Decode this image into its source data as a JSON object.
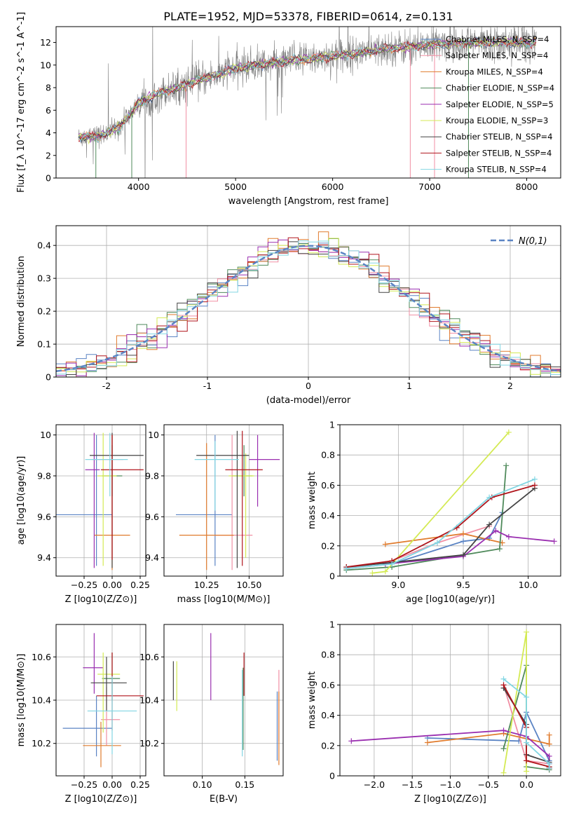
{
  "figure_title": "PLATE=1952, MJD=53378, FIBERID=0614, z=0.131",
  "chart_data": [
    {
      "id": "spectrum",
      "type": "line",
      "title": "PLATE=1952, MJD=53378, FIBERID=0614, z=0.131",
      "xlabel": "wavelength [Angstrom, rest frame]",
      "ylabel": "Flux [f_λ 10^-17 erg cm^-2 s^-1 A^-1]",
      "xlim": [
        3150,
        8350
      ],
      "ylim": [
        0,
        13.4
      ],
      "xticks": [
        4000,
        5000,
        6000,
        7000,
        8000
      ],
      "yticks": [
        0,
        2,
        4,
        6,
        8,
        10,
        12
      ],
      "grid": false,
      "legend": "upper right",
      "series": [
        {
          "name": "Chabrier MILES, N_SSP=4",
          "color": "#5b84c4"
        },
        {
          "name": "Salpeter MILES, N_SSP=4",
          "color": "#f18fa4"
        },
        {
          "name": "Kroupa MILES, N_SSP=4",
          "color": "#e07b2d"
        },
        {
          "name": "Chabrier ELODIE, N_SSP=4",
          "color": "#4f8a5b"
        },
        {
          "name": "Salpeter ELODIE, N_SSP=5",
          "color": "#9a2fb0"
        },
        {
          "name": "Kroupa ELODIE, N_SSP=3",
          "color": "#d4ea54"
        },
        {
          "name": "Chabrier STELIB, N_SSP=4",
          "color": "#444444"
        },
        {
          "name": "Salpeter STELIB, N_SSP=4",
          "color": "#b0151c"
        },
        {
          "name": "Kroupa STELIB, N_SSP=4",
          "color": "#82d6e3"
        }
      ],
      "observed_color": "#808080",
      "continuum_x": [
        3380,
        3600,
        3800,
        4000,
        4200,
        4400,
        4600,
        4800,
        5000,
        5200,
        5400,
        5600,
        5800,
        6000,
        6200,
        6400,
        6600,
        6800,
        7000,
        7200,
        7400,
        7600,
        7800,
        8000,
        8100
      ],
      "continuum_y": [
        3.6,
        3.7,
        4.5,
        6.6,
        7.5,
        8.0,
        8.6,
        9.1,
        9.7,
        10.0,
        10.2,
        10.4,
        10.6,
        10.8,
        11.0,
        11.2,
        11.5,
        11.6,
        11.8,
        11.9,
        11.95,
        12.0,
        12.05,
        12.0,
        12.0
      ]
    },
    {
      "id": "residual-hist",
      "type": "line",
      "xlabel": "(data-model)/error",
      "ylabel": "Normed distribution",
      "xlim": [
        -2.5,
        2.5
      ],
      "ylim": [
        0,
        0.46
      ],
      "xticks": [
        -2,
        -1,
        0,
        1,
        2
      ],
      "yticks": [
        0.0,
        0.1,
        0.2,
        0.3,
        0.4
      ],
      "grid": true,
      "legend": "upper right",
      "legend_label": "N(0,1)",
      "gauss_color": "#5b84c4",
      "bin_width": 0.1
    },
    {
      "id": "age-vs-z",
      "type": "scatter",
      "xlabel": "Z [log10(Z/Z⊙)]",
      "ylabel": "age [log10(age/yr)]",
      "xlim": [
        -0.5,
        0.3
      ],
      "ylim": [
        9.31,
        10.05
      ],
      "xticks": [
        -0.25,
        0.0,
        0.25
      ],
      "xticklabels": [
        "−0.25",
        "0.00",
        "0.25"
      ],
      "yticks": [
        9.4,
        9.6,
        9.8,
        10.0
      ],
      "grid": true,
      "points": [
        {
          "series": 0,
          "x": -0.14,
          "y": 9.61,
          "xerr": [
            0.46,
            0.14
          ],
          "yerr": [
            0.25,
            0.39
          ]
        },
        {
          "series": 1,
          "x": 0.0,
          "y": 9.88,
          "xerr": [
            0.18,
            0.1
          ],
          "yerr": [
            0.1,
            0.13
          ]
        },
        {
          "series": 2,
          "x": 0.0,
          "y": 9.51,
          "xerr": [
            0.16,
            0.16
          ],
          "yerr": [
            0.17,
            0.49
          ]
        },
        {
          "series": 3,
          "x": 0.0,
          "y": 9.8,
          "xerr": [
            0.09,
            0.09
          ],
          "yerr": [
            0.1,
            0.15
          ]
        },
        {
          "series": 4,
          "x": -0.16,
          "y": 9.83,
          "xerr": [
            0.08,
            0.05
          ],
          "yerr": [
            0.48,
            0.18
          ]
        },
        {
          "series": 5,
          "x": -0.08,
          "y": 9.8,
          "xerr": [
            0.05,
            0.12
          ],
          "yerr": [
            0.44,
            0.21
          ]
        },
        {
          "series": 6,
          "x": 0.0,
          "y": 9.9,
          "xerr": [
            0.2,
            0.28
          ],
          "yerr": [
            0.55,
            0.11
          ]
        },
        {
          "series": 7,
          "x": 0.0,
          "y": 9.83,
          "xerr": [
            0.1,
            0.28
          ],
          "yerr": [
            0.44,
            0.17
          ]
        },
        {
          "series": 8,
          "x": -0.02,
          "y": 9.88,
          "xerr": [
            0.22,
            0.16
          ],
          "yerr": [
            0.18,
            0.13
          ]
        }
      ]
    },
    {
      "id": "age-vs-mass",
      "type": "scatter",
      "xlabel": "mass [log10(M/M⊙)]",
      "ylabel": "",
      "xlim": [
        10.0,
        10.7
      ],
      "ylim": [
        9.31,
        10.05
      ],
      "xticks": [
        10.25,
        10.5
      ],
      "xticklabels": [
        "10.25",
        "10.50"
      ],
      "yticks": [
        9.4,
        9.6,
        9.8,
        10.0
      ],
      "grid": true,
      "points": [
        {
          "series": 0,
          "x": 10.3,
          "y": 9.61,
          "xerr": [
            0.23,
            0.1
          ],
          "yerr": [
            0.25,
            0.39
          ]
        },
        {
          "series": 1,
          "x": 10.4,
          "y": 9.51,
          "xerr": [
            0.1,
            0.12
          ],
          "yerr": [
            0.17,
            0.49
          ]
        },
        {
          "series": 2,
          "x": 10.25,
          "y": 9.51,
          "xerr": [
            0.16,
            0.16
          ],
          "yerr": [
            0.17,
            0.45
          ]
        },
        {
          "series": 3,
          "x": 10.47,
          "y": 9.8,
          "xerr": [
            0.07,
            0.05
          ],
          "yerr": [
            0.1,
            0.15
          ]
        },
        {
          "series": 4,
          "x": 10.55,
          "y": 9.88,
          "xerr": [
            0.05,
            0.13
          ],
          "yerr": [
            0.23,
            0.12
          ]
        },
        {
          "series": 5,
          "x": 10.48,
          "y": 9.8,
          "xerr": [
            0.1,
            0.05
          ],
          "yerr": [
            0.4,
            0.11
          ]
        },
        {
          "series": 6,
          "x": 10.43,
          "y": 9.9,
          "xerr": [
            0.24,
            0.07
          ],
          "yerr": [
            0.55,
            0.12
          ]
        },
        {
          "series": 7,
          "x": 10.46,
          "y": 9.83,
          "xerr": [
            0.1,
            0.12
          ],
          "yerr": [
            0.47,
            0.19
          ]
        },
        {
          "series": 8,
          "x": 10.3,
          "y": 9.88,
          "xerr": [
            0.12,
            0.14
          ],
          "yerr": [
            0.25,
            0.09
          ]
        }
      ]
    },
    {
      "id": "massweight-vs-age",
      "type": "line",
      "xlabel": "age [log10(age/yr)]",
      "ylabel": "mass weight",
      "xlim": [
        8.55,
        10.25
      ],
      "ylim": [
        0,
        1.0
      ],
      "xticks": [
        9.0,
        9.5,
        10.0
      ],
      "xticklabels": [
        "9.0",
        "9.5",
        "10.0"
      ],
      "yticks": [
        0.0,
        0.2,
        0.4,
        0.6,
        0.8,
        1.0
      ],
      "grid": true,
      "series": [
        {
          "series": 0,
          "x": [
            8.6,
            8.95,
            9.5,
            9.7,
            9.8
          ],
          "y": [
            0.05,
            0.08,
            0.23,
            0.25,
            0.42
          ]
        },
        {
          "series": 1,
          "x": [
            8.6,
            8.95,
            9.3,
            9.7
          ],
          "y": [
            0.05,
            0.1,
            0.22,
            0.33
          ]
        },
        {
          "series": 2,
          "x": [
            8.9,
            9.5,
            9.8
          ],
          "y": [
            0.21,
            0.28,
            0.22
          ]
        },
        {
          "series": 3,
          "x": [
            8.6,
            8.95,
            9.78,
            9.83
          ],
          "y": [
            0.04,
            0.06,
            0.18,
            0.73
          ]
        },
        {
          "series": 4,
          "x": [
            8.9,
            9.5,
            9.75,
            9.85,
            10.2
          ],
          "y": [
            0.08,
            0.13,
            0.3,
            0.26,
            0.23
          ]
        },
        {
          "series": 5,
          "x": [
            8.8,
            8.9,
            9.85
          ],
          "y": [
            0.02,
            0.03,
            0.95
          ]
        },
        {
          "series": 6,
          "x": [
            8.6,
            8.95,
            9.5,
            9.7,
            10.05
          ],
          "y": [
            0.06,
            0.09,
            0.14,
            0.34,
            0.58
          ]
        },
        {
          "series": 7,
          "x": [
            8.6,
            8.95,
            9.45,
            9.72,
            10.05
          ],
          "y": [
            0.06,
            0.1,
            0.32,
            0.52,
            0.6
          ]
        },
        {
          "series": 8,
          "x": [
            8.6,
            8.95,
            9.3,
            9.7,
            10.05
          ],
          "y": [
            0.05,
            0.08,
            0.22,
            0.52,
            0.64
          ]
        }
      ]
    },
    {
      "id": "mass-vs-z",
      "type": "scatter",
      "xlabel": "Z [log10(Z/Z⊙)]",
      "ylabel": "mass [log10(M/M⊙)]",
      "xlim": [
        -0.5,
        0.3
      ],
      "ylim": [
        10.05,
        10.75
      ],
      "xticks": [
        -0.25,
        0.0,
        0.25
      ],
      "xticklabels": [
        "−0.25",
        "0.00",
        "0.25"
      ],
      "yticks": [
        10.2,
        10.4,
        10.6
      ],
      "grid": true,
      "points": [
        {
          "series": 0,
          "x": -0.14,
          "y": 10.27,
          "xerr": [
            0.3,
            0.14
          ],
          "yerr": [
            0.13,
            0.15
          ]
        },
        {
          "series": 1,
          "x": -0.05,
          "y": 10.31,
          "xerr": [
            0.05,
            0.12
          ],
          "yerr": [
            0.12,
            0.15
          ]
        },
        {
          "series": 2,
          "x": -0.1,
          "y": 10.19,
          "xerr": [
            0.16,
            0.18
          ],
          "yerr": [
            0.1,
            0.11
          ]
        },
        {
          "series": 3,
          "x": 0.0,
          "y": 10.5,
          "xerr": [
            0.09,
            0.07
          ],
          "yerr": [
            0.1,
            0.12
          ]
        },
        {
          "series": 4,
          "x": -0.16,
          "y": 10.55,
          "xerr": [
            0.1,
            0.08
          ],
          "yerr": [
            0.12,
            0.16
          ]
        },
        {
          "series": 5,
          "x": -0.08,
          "y": 10.52,
          "xerr": [
            0.05,
            0.15
          ],
          "yerr": [
            0.27,
            0.1
          ]
        },
        {
          "series": 6,
          "x": -0.05,
          "y": 10.48,
          "xerr": [
            0.14,
            0.18
          ],
          "yerr": [
            0.13,
            0.12
          ]
        },
        {
          "series": 7,
          "x": 0.0,
          "y": 10.42,
          "xerr": [
            0.14,
            0.28
          ],
          "yerr": [
            0.16,
            0.2
          ]
        },
        {
          "series": 8,
          "x": 0.0,
          "y": 10.35,
          "xerr": [
            0.22,
            0.22
          ],
          "yerr": [
            0.2,
            0.16
          ]
        }
      ]
    },
    {
      "id": "mass-vs-ebv",
      "type": "scatter",
      "xlabel": "E(B-V)",
      "ylabel": "",
      "xlim": [
        0.055,
        0.195
      ],
      "ylim": [
        10.05,
        10.75
      ],
      "xticks": [
        0.1,
        0.15
      ],
      "xticklabels": [
        "0.10",
        "0.15"
      ],
      "yticks": [
        10.2,
        10.4,
        10.6
      ],
      "grid": true,
      "points": [
        {
          "series": 0,
          "x": 0.188,
          "y": 10.28,
          "yerr": [
            0.16,
            0.16
          ]
        },
        {
          "series": 1,
          "x": 0.19,
          "y": 10.33,
          "yerr": [
            0.12,
            0.21
          ]
        },
        {
          "series": 2,
          "x": 0.19,
          "y": 10.25,
          "yerr": [
            0.15,
            0.19
          ]
        },
        {
          "series": 3,
          "x": 0.148,
          "y": 10.35,
          "yerr": [
            0.18,
            0.2
          ]
        },
        {
          "series": 4,
          "x": 0.11,
          "y": 10.55,
          "yerr": [
            0.15,
            0.16
          ]
        },
        {
          "series": 5,
          "x": 0.07,
          "y": 10.47,
          "yerr": [
            0.12,
            0.11
          ]
        },
        {
          "series": 6,
          "x": 0.066,
          "y": 10.49,
          "yerr": [
            0.09,
            0.09
          ]
        },
        {
          "series": 7,
          "x": 0.149,
          "y": 10.52,
          "yerr": [
            0.1,
            0.1
          ]
        },
        {
          "series": 8,
          "x": 0.147,
          "y": 10.34,
          "yerr": [
            0.2,
            0.2
          ]
        }
      ]
    },
    {
      "id": "massweight-vs-z",
      "type": "line",
      "xlabel": "Z [log10(Z/Z⊙)]",
      "ylabel": "mass weight",
      "xlim": [
        -2.45,
        0.45
      ],
      "ylim": [
        0,
        1.0
      ],
      "xticks": [
        -2.0,
        -1.5,
        -1.0,
        -0.5,
        0.0
      ],
      "xticklabels": [
        "−2.0",
        "−1.5",
        "−1.0",
        "−0.5",
        "0.0"
      ],
      "yticks": [
        0.0,
        0.2,
        0.4,
        0.6,
        0.8,
        1.0
      ],
      "grid": true,
      "series": [
        {
          "series": 0,
          "x": [
            -1.3,
            -0.1,
            0.0,
            0.3,
            0.3
          ],
          "y": [
            0.25,
            0.23,
            0.42,
            0.1,
            0.05
          ]
        },
        {
          "series": 1,
          "x": [
            -0.3,
            0.0,
            0.3,
            0.3
          ],
          "y": [
            0.6,
            0.1,
            0.08,
            0.05
          ]
        },
        {
          "series": 2,
          "x": [
            -1.3,
            -0.3,
            0.3,
            0.3
          ],
          "y": [
            0.22,
            0.28,
            0.21,
            0.27
          ]
        },
        {
          "series": 3,
          "x": [
            -0.3,
            0.0,
            0.0,
            0.3
          ],
          "y": [
            0.18,
            0.73,
            0.06,
            0.04
          ]
        },
        {
          "series": 4,
          "x": [
            -2.3,
            -0.3,
            0.0,
            0.3,
            0.3
          ],
          "y": [
            0.23,
            0.3,
            0.26,
            0.13,
            0.08
          ]
        },
        {
          "series": 5,
          "x": [
            -0.3,
            0.0,
            0.0
          ],
          "y": [
            0.02,
            0.95,
            0.03
          ]
        },
        {
          "series": 6,
          "x": [
            -0.3,
            0.0,
            0.0,
            0.3,
            0.3
          ],
          "y": [
            0.58,
            0.34,
            0.14,
            0.09,
            0.06
          ]
        },
        {
          "series": 7,
          "x": [
            -0.3,
            0.0,
            0.0,
            0.3,
            0.3
          ],
          "y": [
            0.6,
            0.32,
            0.1,
            0.06,
            0.05
          ]
        },
        {
          "series": 8,
          "x": [
            -0.3,
            0.0,
            0.0,
            0.3,
            0.3
          ],
          "y": [
            0.64,
            0.52,
            0.22,
            0.08,
            0.05
          ]
        }
      ]
    }
  ]
}
